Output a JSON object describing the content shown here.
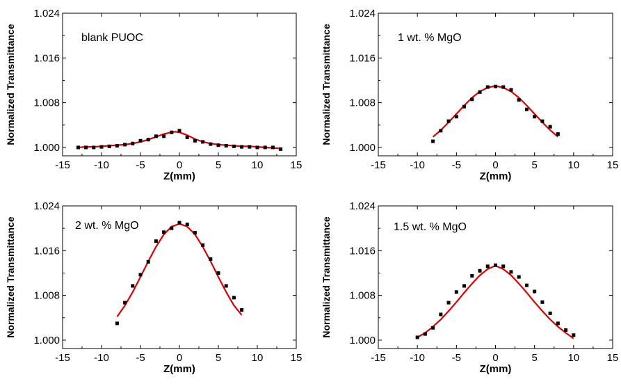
{
  "figure": {
    "ylabel": "Normalized Transmittance",
    "xlabel": "Z(mm)",
    "fit_color": "#e00000",
    "point_color": "#000000"
  },
  "chart_data": [
    {
      "type": "scatter",
      "annotation": "blank PUOC",
      "xlabel": "Z(mm)",
      "ylabel": "Normalized Transmittance",
      "xlim": [
        -15,
        15
      ],
      "ylim": [
        0.9985,
        1.024
      ],
      "xticks": [
        -15,
        -10,
        -5,
        0,
        5,
        10,
        15
      ],
      "yticks": [
        1.0,
        1.008,
        1.016,
        1.024
      ],
      "series": [
        {
          "kind": "points",
          "x": [
            -13,
            -12,
            -11,
            -10,
            -9,
            -8,
            -7,
            -6,
            -5,
            -4,
            -3,
            -2,
            -1,
            0,
            1,
            2,
            3,
            4,
            5,
            6,
            7,
            8,
            9,
            10,
            11,
            12,
            13
          ],
          "y": [
            1.0,
            1.0,
            1.0,
            1.0001,
            1.0002,
            1.0003,
            1.0005,
            1.0007,
            1.0012,
            1.0014,
            1.002,
            1.002,
            1.0027,
            1.003,
            1.0018,
            1.0012,
            1.001,
            1.0006,
            1.0004,
            1.0003,
            1.0002,
            1.0001,
            1.0001,
            1.0,
            1.0,
            1.0,
            0.9997
          ]
        },
        {
          "kind": "fit",
          "x": [
            -13,
            -12,
            -11,
            -10,
            -9,
            -8,
            -7,
            -6,
            -5,
            -4,
            -3,
            -2,
            -1,
            -0.5,
            0,
            1,
            2,
            3,
            4,
            5,
            6,
            7,
            8,
            9,
            10,
            11,
            12,
            13
          ],
          "y": [
            1.0,
            1.0001,
            1.0001,
            1.0002,
            1.0003,
            1.0004,
            1.0005,
            1.0007,
            1.001,
            1.0014,
            1.0019,
            1.0024,
            1.0027,
            1.0028,
            1.0027,
            1.0022,
            1.0015,
            1.001,
            1.0007,
            1.0005,
            1.0004,
            1.0003,
            1.0002,
            1.0002,
            1.0001,
            1.0,
            0.9999,
            0.9998
          ]
        }
      ]
    },
    {
      "type": "scatter",
      "annotation": "1 wt. % MgO",
      "xlabel": "Z(mm)",
      "ylabel": "Normalized Transmittance",
      "xlim": [
        -15,
        15
      ],
      "ylim": [
        0.9985,
        1.024
      ],
      "xticks": [
        -15,
        -10,
        -5,
        0,
        5,
        10,
        15
      ],
      "yticks": [
        1.0,
        1.008,
        1.016,
        1.024
      ],
      "series": [
        {
          "kind": "points",
          "x": [
            -8,
            -7,
            -6,
            -5,
            -4,
            -3,
            -2,
            -1,
            0,
            1,
            2,
            3,
            4,
            5,
            6,
            7,
            8
          ],
          "y": [
            1.0011,
            1.003,
            1.0047,
            1.0055,
            1.0073,
            1.0086,
            1.0099,
            1.0108,
            1.0109,
            1.0108,
            1.0103,
            1.0085,
            1.0068,
            1.0055,
            1.0047,
            1.0037,
            1.0024
          ]
        },
        {
          "kind": "fit",
          "x": [
            -8,
            -7,
            -6,
            -5,
            -4,
            -3,
            -2,
            -1,
            0,
            1,
            2,
            3,
            4,
            5,
            6,
            7,
            8
          ],
          "y": [
            1.0019,
            1.0031,
            1.0045,
            1.006,
            1.0075,
            1.0089,
            1.01,
            1.0107,
            1.011,
            1.0107,
            1.01,
            1.0089,
            1.0075,
            1.006,
            1.0045,
            1.0031,
            1.0019
          ]
        }
      ]
    },
    {
      "type": "scatter",
      "annotation": "2 wt. % MgO",
      "xlabel": "Z(mm)",
      "ylabel": "Normalized Transmittance",
      "xlim": [
        -15,
        15
      ],
      "ylim": [
        0.9985,
        1.024
      ],
      "xticks": [
        -15,
        -10,
        -5,
        0,
        5,
        10,
        15
      ],
      "yticks": [
        1.0,
        1.008,
        1.016,
        1.024
      ],
      "series": [
        {
          "kind": "points",
          "x": [
            -8,
            -7,
            -6,
            -5,
            -4,
            -3,
            -2,
            -1,
            0,
            1,
            2,
            3,
            4,
            5,
            6,
            7,
            8
          ],
          "y": [
            1.003,
            1.0067,
            1.0097,
            1.0117,
            1.014,
            1.0177,
            1.0193,
            1.02,
            1.021,
            1.0207,
            1.0192,
            1.017,
            1.0145,
            1.012,
            1.0097,
            1.0076,
            1.0054
          ]
        },
        {
          "kind": "fit",
          "x": [
            -8,
            -7,
            -6,
            -5,
            -4,
            -3,
            -2,
            -1,
            0,
            1,
            2,
            3,
            4,
            5,
            6,
            7,
            8
          ],
          "y": [
            1.0042,
            1.0062,
            1.0086,
            1.0113,
            1.0141,
            1.0167,
            1.0189,
            1.0203,
            1.0208,
            1.0203,
            1.0189,
            1.0167,
            1.0141,
            1.0113,
            1.0086,
            1.0062,
            1.0045
          ]
        }
      ]
    },
    {
      "type": "scatter",
      "annotation": "1.5 wt. % MgO",
      "xlabel": "Z(mm)",
      "ylabel": "Normalized Transmittance",
      "xlim": [
        -15,
        15
      ],
      "ylim": [
        0.9985,
        1.024
      ],
      "xticks": [
        -15,
        -10,
        -5,
        0,
        5,
        10,
        15
      ],
      "yticks": [
        1.0,
        1.008,
        1.016,
        1.024
      ],
      "series": [
        {
          "kind": "points",
          "x": [
            -10,
            -9,
            -8,
            -7,
            -6,
            -5,
            -4,
            -3,
            -2,
            -1,
            0,
            1,
            2,
            3,
            4,
            5,
            6,
            7,
            8,
            9,
            10
          ],
          "y": [
            1.0005,
            1.0011,
            1.0022,
            1.0046,
            1.0067,
            1.0086,
            1.0097,
            1.0115,
            1.0124,
            1.0132,
            1.0134,
            1.0132,
            1.0122,
            1.0113,
            1.0098,
            1.0087,
            1.0068,
            1.0048,
            1.003,
            1.0018,
            1.0009
          ]
        },
        {
          "kind": "fit",
          "x": [
            -10,
            -9,
            -8,
            -7,
            -6,
            -5,
            -4,
            -3,
            -2,
            -1,
            0,
            1,
            2,
            3,
            4,
            5,
            6,
            7,
            8,
            9,
            10
          ],
          "y": [
            1.0005,
            1.0013,
            1.0024,
            1.0037,
            1.0052,
            1.0068,
            1.0085,
            1.0101,
            1.0116,
            1.0127,
            1.0133,
            1.0127,
            1.0116,
            1.0101,
            1.0085,
            1.0068,
            1.0052,
            1.0037,
            1.0024,
            1.0013,
            1.0003
          ]
        }
      ]
    }
  ]
}
